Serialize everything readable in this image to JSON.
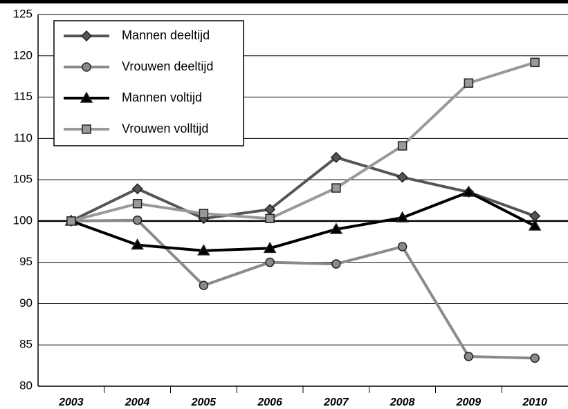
{
  "chart_data": {
    "type": "line",
    "categories": [
      "2003",
      "2004",
      "2005",
      "2006",
      "2007",
      "2008",
      "2009",
      "2010"
    ],
    "series": [
      {
        "name": "Mannen deeltijd",
        "color": "#555555",
        "marker": "diamond",
        "values": [
          100,
          103.9,
          100.3,
          101.4,
          107.7,
          105.3,
          103.5,
          100.6
        ]
      },
      {
        "name": "Vrouwen deeltijd",
        "color": "#8a8a8a",
        "marker": "circle",
        "values": [
          100,
          100.1,
          92.2,
          95.0,
          94.8,
          96.9,
          83.6,
          83.4
        ]
      },
      {
        "name": "Mannen voltijd",
        "color": "#000000",
        "marker": "triangle",
        "values": [
          100,
          97.1,
          96.4,
          96.7,
          99.0,
          100.4,
          103.5,
          99.4
        ]
      },
      {
        "name": "Vrouwen volltijd",
        "color": "#999999",
        "marker": "square",
        "values": [
          100,
          102.1,
          100.9,
          100.3,
          104.0,
          109.1,
          116.7,
          119.2
        ]
      }
    ],
    "ylim": [
      80,
      125
    ],
    "yticks": [
      80,
      85,
      90,
      95,
      100,
      105,
      110,
      115,
      120,
      125
    ],
    "grid": true,
    "legend": "top-left"
  }
}
